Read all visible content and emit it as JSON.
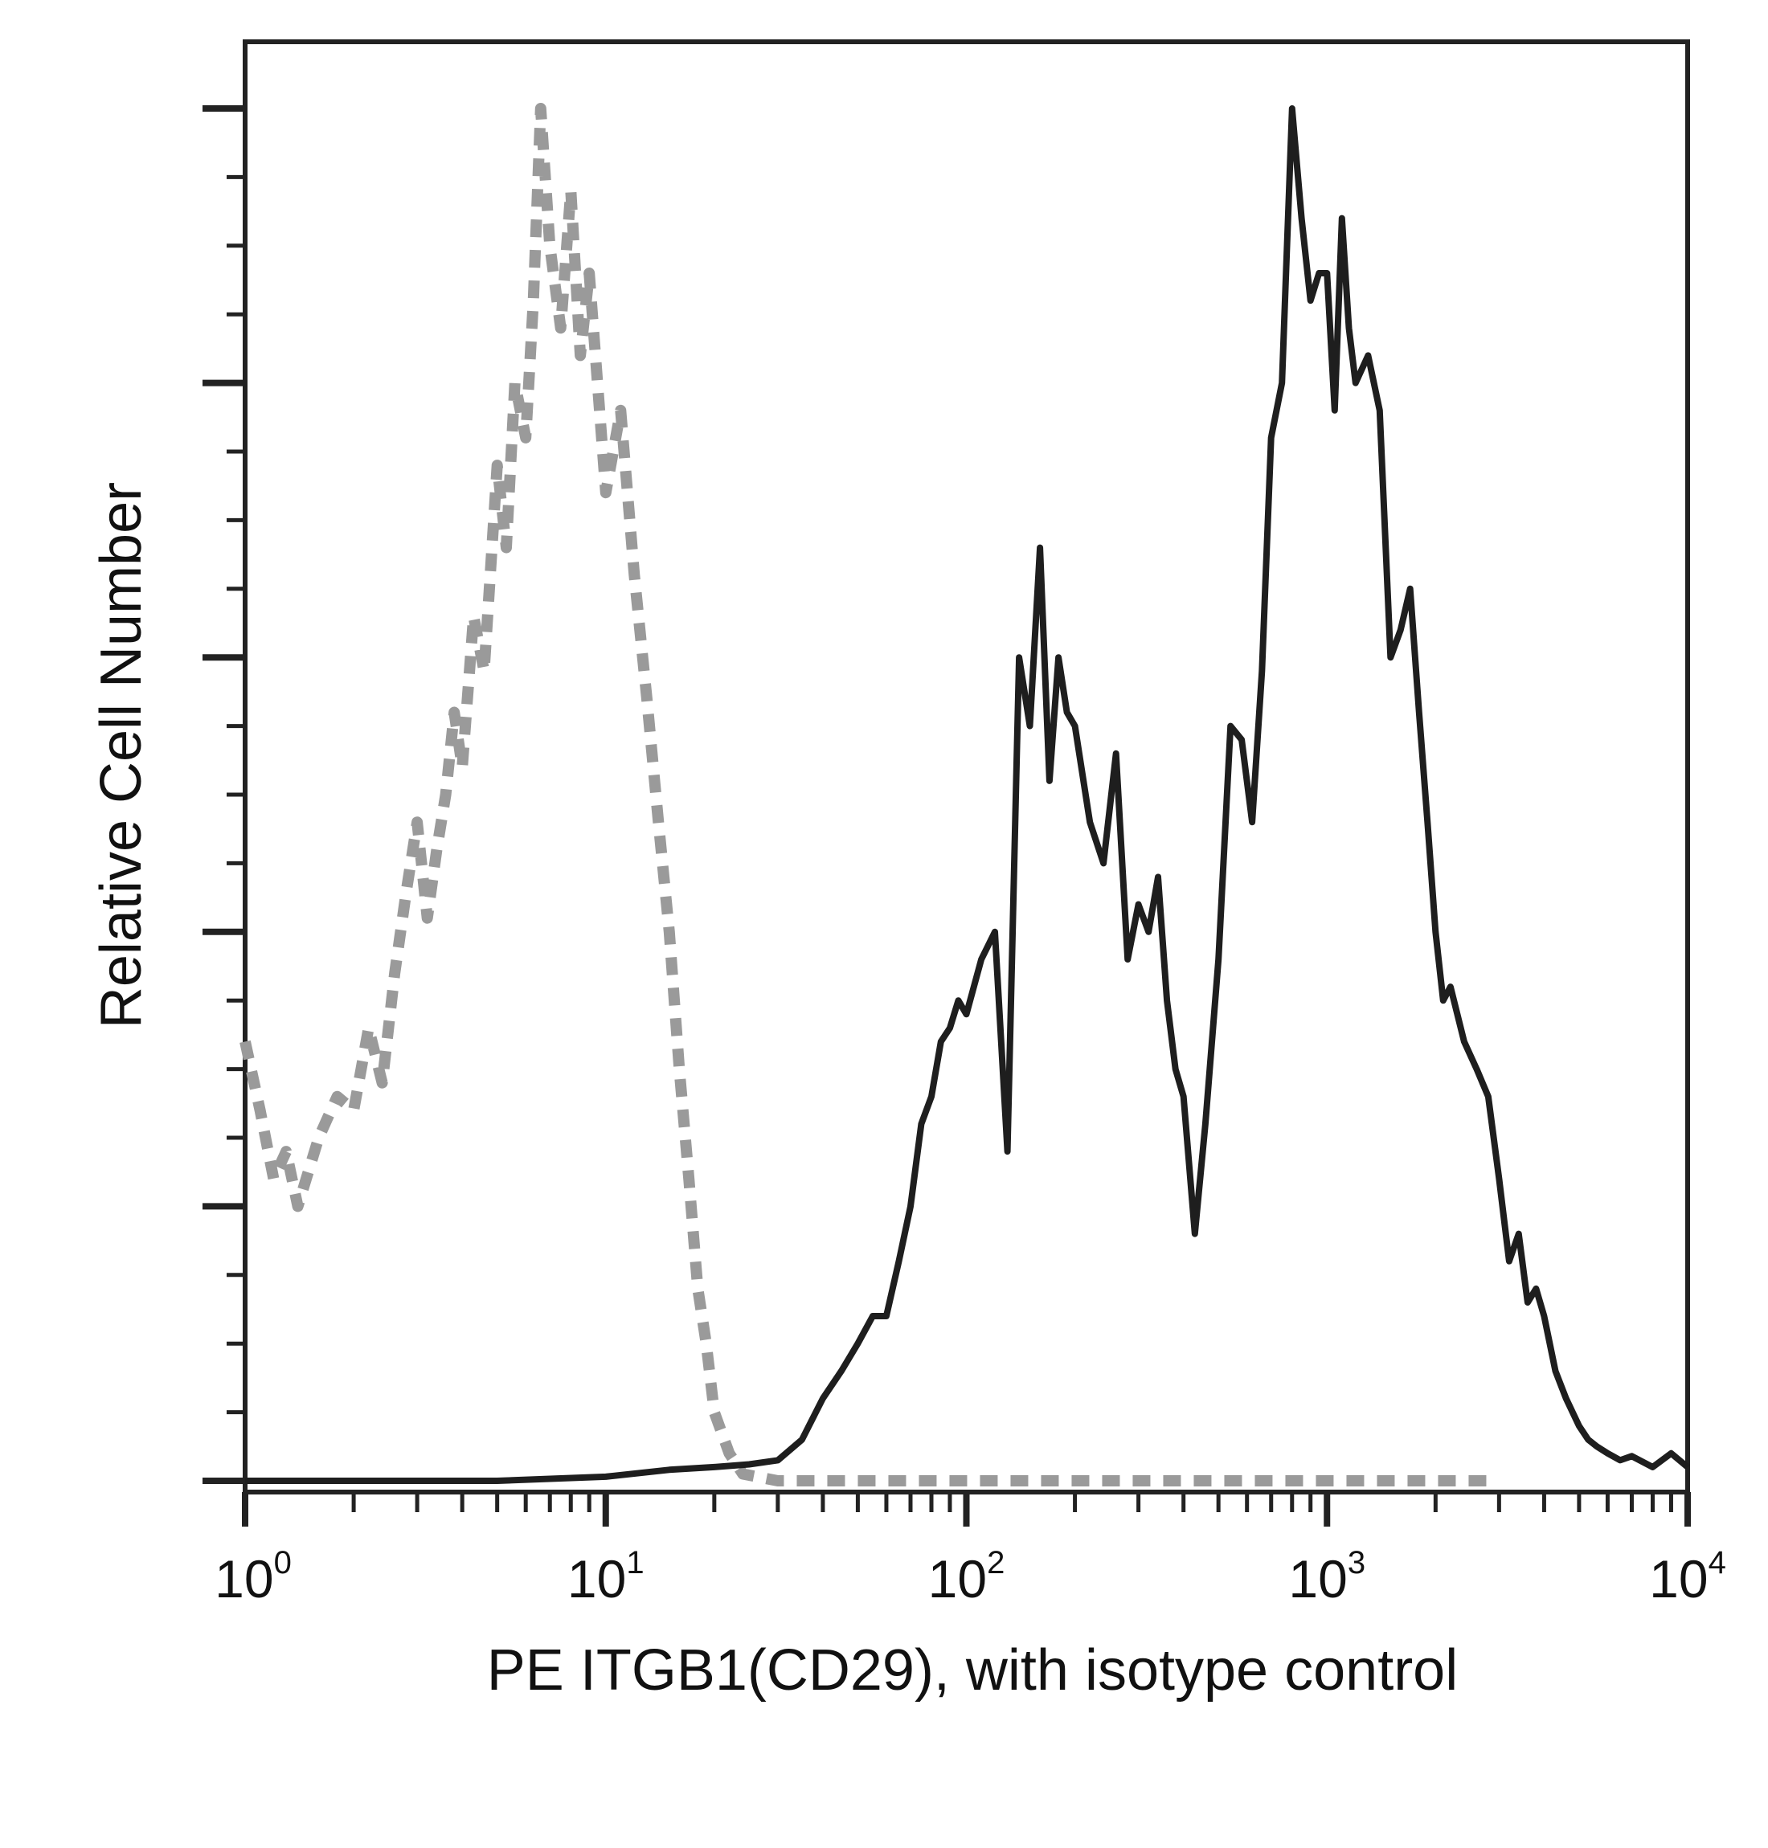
{
  "chart_data": {
    "type": "line",
    "title": "",
    "xlabel": "PE ITGB1(CD29), with isotype control",
    "ylabel": "Relative Cell Number",
    "xscale": "log",
    "xlim": [
      1,
      10000
    ],
    "ylim": [
      0,
      100
    ],
    "x_ticks": [
      {
        "base": "10",
        "exp": "0",
        "value": 1
      },
      {
        "base": "10",
        "exp": "1",
        "value": 10
      },
      {
        "base": "10",
        "exp": "2",
        "value": 100
      },
      {
        "base": "10",
        "exp": "3",
        "value": 1000
      },
      {
        "base": "10",
        "exp": "4",
        "value": 10000
      }
    ],
    "grid": false,
    "legend": "none",
    "series": [
      {
        "style": "dashed",
        "color": "#9a9a9a",
        "points": [
          [
            1.0,
            32
          ],
          [
            1.1,
            27
          ],
          [
            1.2,
            22
          ],
          [
            1.3,
            24
          ],
          [
            1.4,
            20
          ],
          [
            1.6,
            25
          ],
          [
            1.8,
            28
          ],
          [
            2.0,
            27
          ],
          [
            2.2,
            33
          ],
          [
            2.4,
            29
          ],
          [
            2.6,
            37
          ],
          [
            2.8,
            43
          ],
          [
            3.0,
            48
          ],
          [
            3.2,
            41
          ],
          [
            3.4,
            46
          ],
          [
            3.6,
            50
          ],
          [
            3.8,
            56
          ],
          [
            4.0,
            52
          ],
          [
            4.3,
            63
          ],
          [
            4.6,
            59
          ],
          [
            5.0,
            74
          ],
          [
            5.3,
            68
          ],
          [
            5.6,
            80
          ],
          [
            6.0,
            76
          ],
          [
            6.3,
            86
          ],
          [
            6.6,
            100
          ],
          [
            7.0,
            90
          ],
          [
            7.5,
            84
          ],
          [
            8.0,
            94
          ],
          [
            8.5,
            82
          ],
          [
            9.0,
            88
          ],
          [
            10.0,
            72
          ],
          [
            11.0,
            78
          ],
          [
            12.0,
            66
          ],
          [
            13.0,
            57
          ],
          [
            14.0,
            48
          ],
          [
            15.0,
            40
          ],
          [
            16.0,
            30
          ],
          [
            17.0,
            22
          ],
          [
            18.0,
            14
          ],
          [
            19.0,
            10
          ],
          [
            20.0,
            5
          ],
          [
            22.0,
            2
          ],
          [
            24.0,
            0.5
          ],
          [
            30,
            0
          ],
          [
            100,
            0
          ],
          [
            1000,
            0
          ],
          [
            3000,
            0
          ]
        ]
      },
      {
        "style": "solid",
        "color": "#1e1e1e",
        "points": [
          [
            1.0,
            0
          ],
          [
            5,
            0
          ],
          [
            10,
            0.3
          ],
          [
            15,
            0.8
          ],
          [
            20,
            1
          ],
          [
            25,
            1.2
          ],
          [
            30,
            1.5
          ],
          [
            35,
            3
          ],
          [
            40,
            6
          ],
          [
            45,
            8
          ],
          [
            50,
            10
          ],
          [
            55,
            12
          ],
          [
            60,
            12
          ],
          [
            65,
            16
          ],
          [
            70,
            20
          ],
          [
            75,
            26
          ],
          [
            80,
            28
          ],
          [
            85,
            32
          ],
          [
            90,
            33
          ],
          [
            95,
            35
          ],
          [
            100,
            34
          ],
          [
            110,
            38
          ],
          [
            120,
            40
          ],
          [
            130,
            24
          ],
          [
            140,
            60
          ],
          [
            150,
            55
          ],
          [
            160,
            68
          ],
          [
            170,
            51
          ],
          [
            180,
            60
          ],
          [
            190,
            56
          ],
          [
            200,
            55
          ],
          [
            220,
            48
          ],
          [
            240,
            45
          ],
          [
            260,
            53
          ],
          [
            280,
            38
          ],
          [
            300,
            42
          ],
          [
            320,
            40
          ],
          [
            340,
            44
          ],
          [
            360,
            35
          ],
          [
            380,
            30
          ],
          [
            400,
            28
          ],
          [
            430,
            18
          ],
          [
            460,
            26
          ],
          [
            500,
            38
          ],
          [
            540,
            55
          ],
          [
            580,
            54
          ],
          [
            620,
            48
          ],
          [
            660,
            59
          ],
          [
            700,
            76
          ],
          [
            750,
            80
          ],
          [
            800,
            100
          ],
          [
            850,
            92
          ],
          [
            900,
            86
          ],
          [
            950,
            88
          ],
          [
            1000,
            88
          ],
          [
            1050,
            78
          ],
          [
            1100,
            92
          ],
          [
            1150,
            84
          ],
          [
            1200,
            80
          ],
          [
            1300,
            82
          ],
          [
            1400,
            78
          ],
          [
            1500,
            60
          ],
          [
            1600,
            62
          ],
          [
            1700,
            65
          ],
          [
            1800,
            56
          ],
          [
            1900,
            48
          ],
          [
            2000,
            40
          ],
          [
            2100,
            35
          ],
          [
            2200,
            36
          ],
          [
            2400,
            32
          ],
          [
            2600,
            30
          ],
          [
            2800,
            28
          ],
          [
            3000,
            22
          ],
          [
            3200,
            16
          ],
          [
            3400,
            18
          ],
          [
            3600,
            13
          ],
          [
            3800,
            14
          ],
          [
            4000,
            12
          ],
          [
            4300,
            8
          ],
          [
            4600,
            6
          ],
          [
            5000,
            4
          ],
          [
            5300,
            3
          ],
          [
            5600,
            2.5
          ],
          [
            6000,
            2
          ],
          [
            6500,
            1.5
          ],
          [
            7000,
            1.8
          ],
          [
            8000,
            1
          ],
          [
            9000,
            2
          ],
          [
            10000,
            1
          ]
        ]
      }
    ]
  }
}
